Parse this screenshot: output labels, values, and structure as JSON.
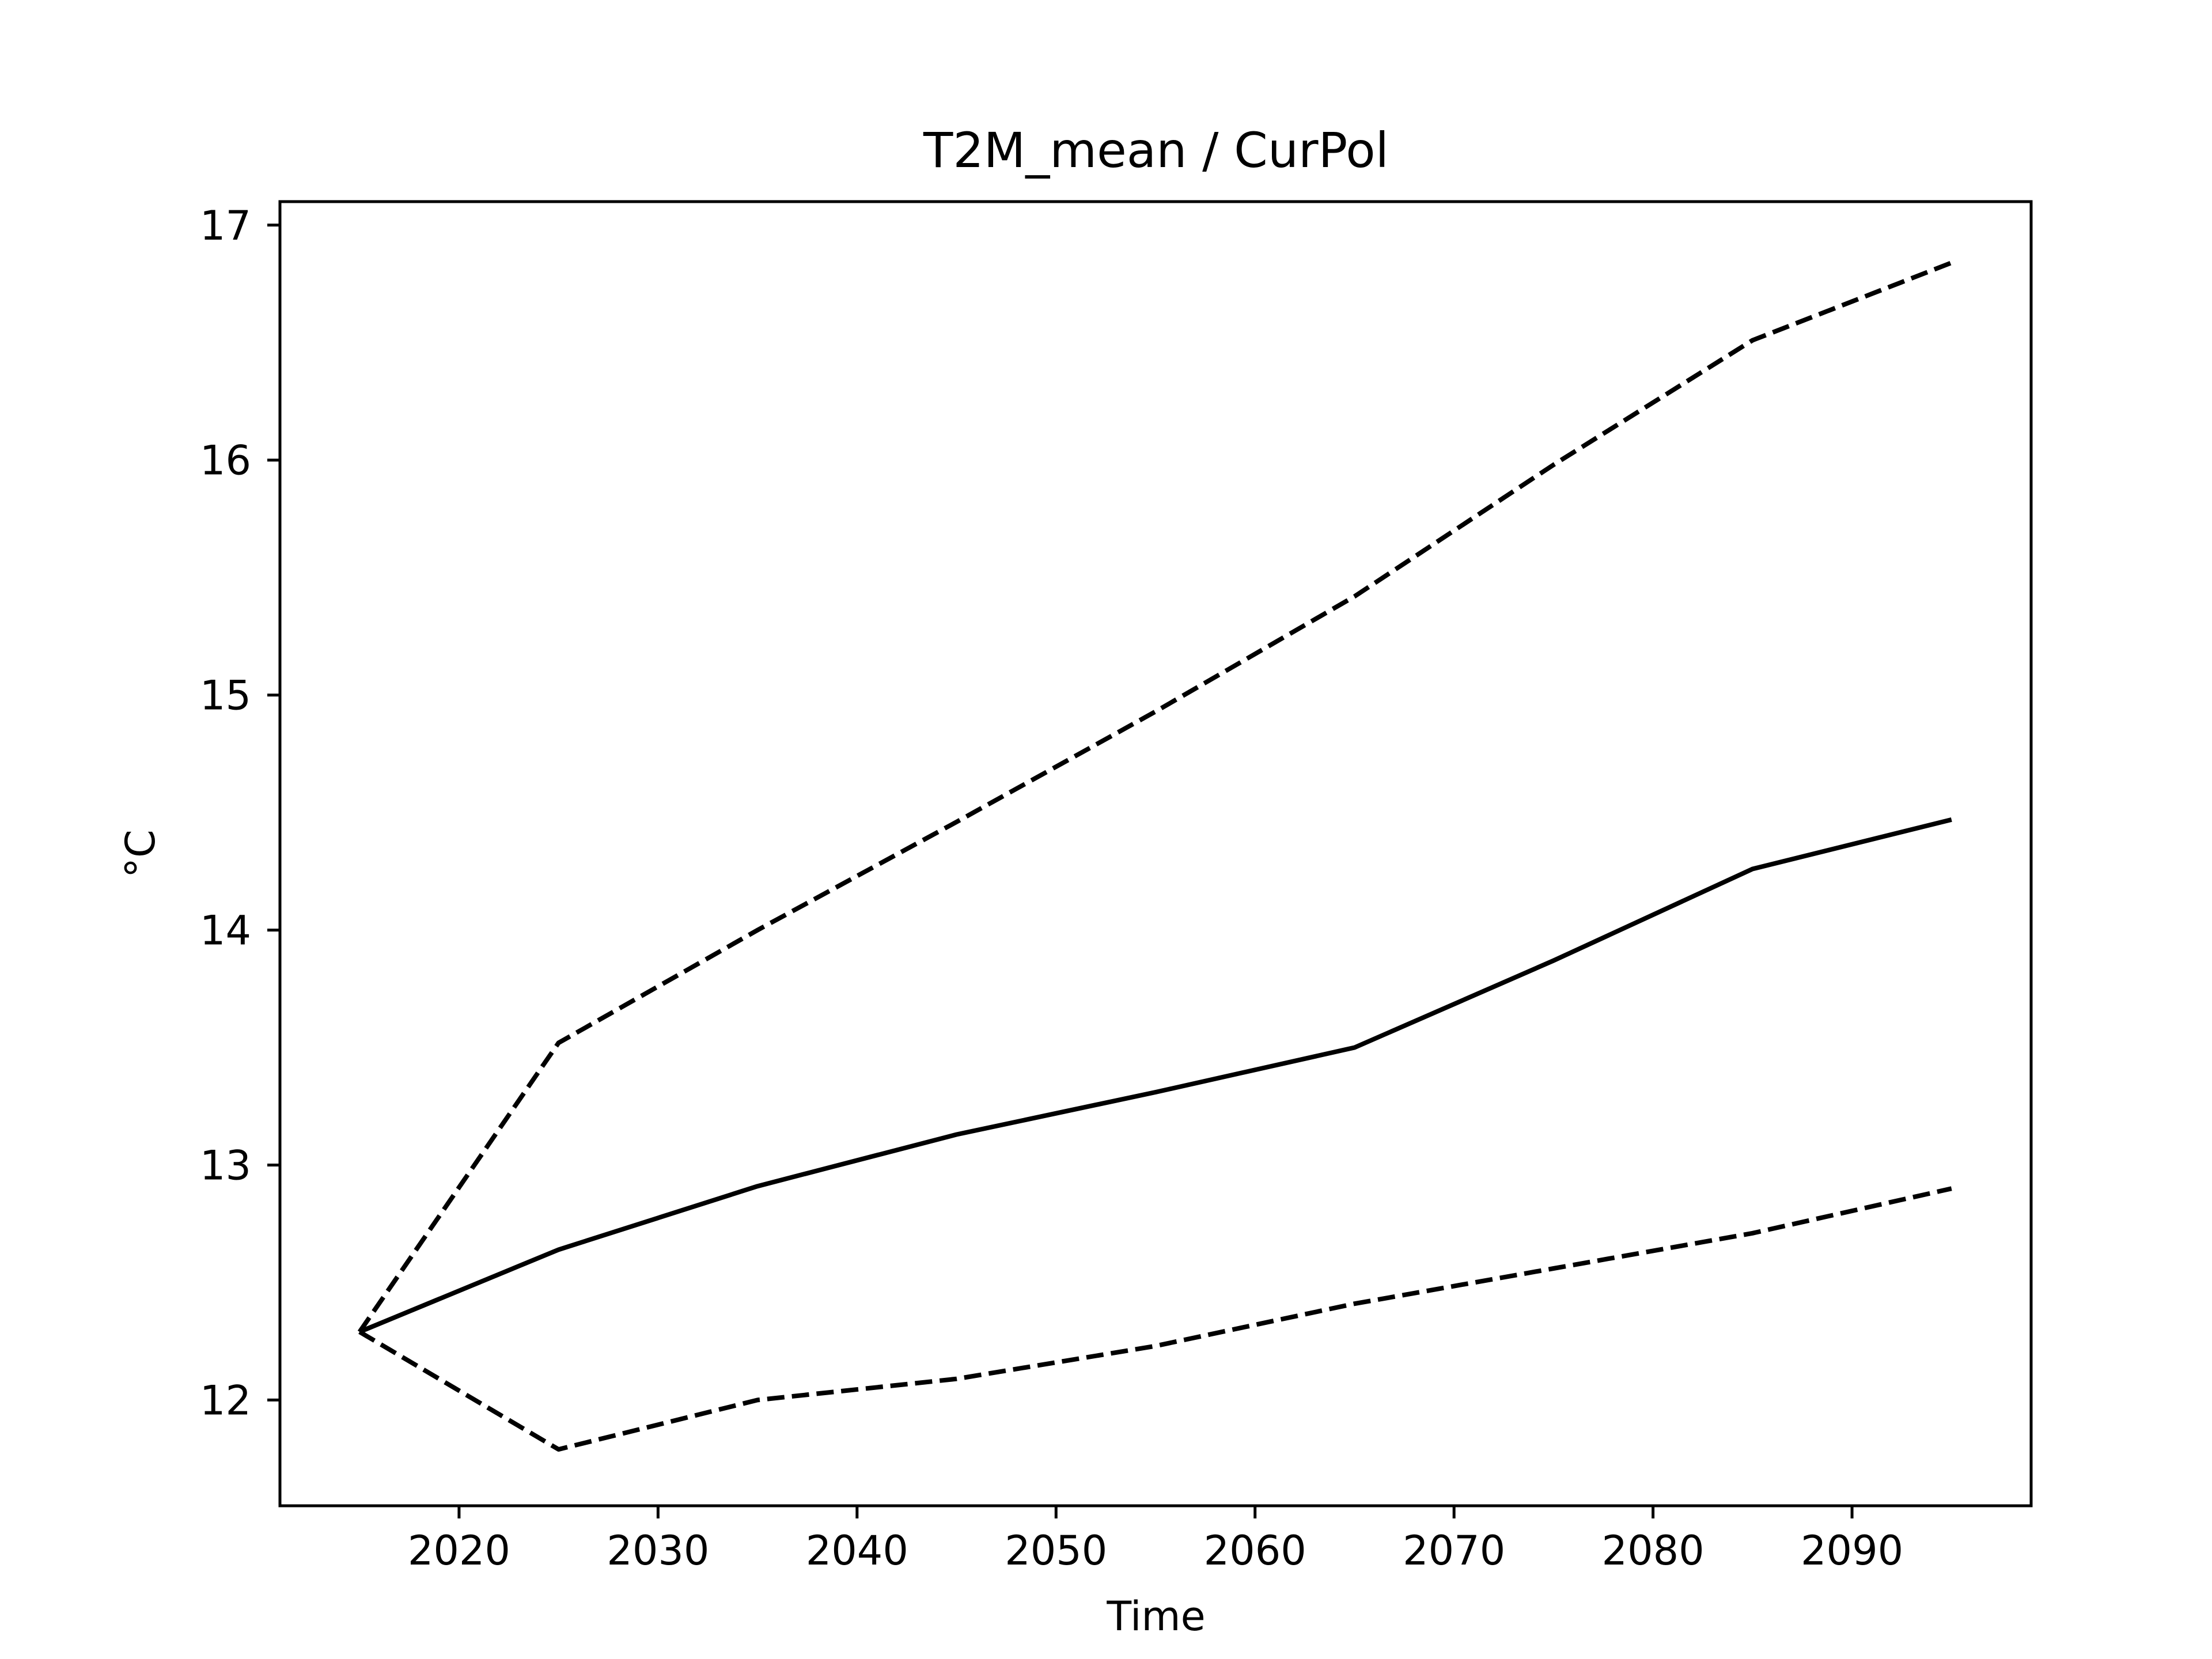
{
  "chart_data": {
    "type": "line",
    "title": "T2M_mean / CurPol",
    "xlabel": "Time",
    "ylabel": "°C",
    "xlim": [
      2011,
      2099
    ],
    "ylim": [
      11.55,
      17.1
    ],
    "xticks": [
      2020,
      2030,
      2040,
      2050,
      2060,
      2070,
      2080,
      2090
    ],
    "yticks": [
      12,
      13,
      14,
      15,
      16,
      17
    ],
    "grid": false,
    "x": [
      2015,
      2025,
      2035,
      2045,
      2055,
      2065,
      2075,
      2085,
      2095
    ],
    "series": [
      {
        "values": [
          12.29,
          13.52,
          14.0,
          14.46,
          14.93,
          15.42,
          15.98,
          16.51,
          16.84
        ],
        "color": "#000000",
        "style": "dashed"
      },
      {
        "values": [
          12.29,
          12.64,
          12.91,
          13.13,
          13.31,
          13.5,
          13.87,
          14.26,
          14.47
        ],
        "color": "#000000",
        "style": "solid"
      },
      {
        "values": [
          12.29,
          11.79,
          12.0,
          12.09,
          12.23,
          12.41,
          12.56,
          12.71,
          12.9
        ],
        "color": "#000000",
        "style": "dashed"
      }
    ]
  }
}
